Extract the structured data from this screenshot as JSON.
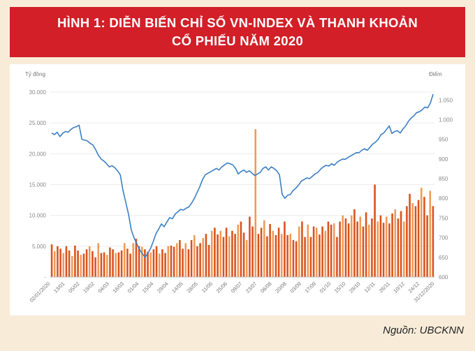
{
  "header": {
    "title_line1": "HÌNH 1: DIỄN BIẾN CHỈ SỐ VN-INDEX VÀ THANH KHOẢN",
    "title_line2": "CỔ PHIẾU NĂM 2020"
  },
  "source": "Nguồn: UBCKNN",
  "colors": {
    "header_bg": "#d21f28",
    "page_bg": "#f8ecd9",
    "line": "#3b7fc4",
    "bar_dark": "#d9531e",
    "bar_light": "#f29a55"
  },
  "chart_data": {
    "type": "bar+line",
    "left_axis_unit": "Tỷ đồng",
    "right_axis_unit": "Điểm",
    "left_ticks": [
      "30.000",
      "25.000",
      "20.000",
      "15.000",
      "10.000",
      "5.000",
      "-"
    ],
    "right_ticks": [
      "1.050",
      "1.000",
      "950",
      "900",
      "850",
      "800",
      "750",
      "700",
      "650",
      "600"
    ],
    "ylim_left": [
      0,
      30000
    ],
    "ylim_right": [
      600,
      1070
    ],
    "x_tick_labels": [
      "02/01/2020",
      "13/01",
      "05/02",
      "19/02",
      "04/03",
      "18/03",
      "01/04",
      "15/04",
      "29/04",
      "14/05",
      "28/05",
      "11/06",
      "25/06",
      "09/07",
      "23/07",
      "06/08",
      "20/08",
      "03/09",
      "17/09",
      "01/10",
      "15/10",
      "29/10",
      "12/11",
      "26/11",
      "10/12",
      "24/12",
      "31/12/2020"
    ],
    "series": [
      {
        "kind": "line",
        "axis": "right",
        "values": [
          966,
          962,
          968,
          957,
          965,
          970,
          968,
          975,
          980,
          982,
          986,
          950,
          948,
          946,
          940,
          936,
          924,
          910,
          900,
          895,
          888,
          880,
          883,
          878,
          870,
          860,
          820,
          790,
          760,
          720,
          700,
          685,
          670,
          660,
          650,
          660,
          672,
          690,
          710,
          722,
          735,
          728,
          740,
          751,
          748,
          760,
          766,
          772,
          770,
          775,
          778,
          788,
          800,
          815,
          830,
          848,
          860,
          864,
          868,
          872,
          876,
          872,
          880,
          885,
          890,
          888,
          885,
          876,
          862,
          868,
          872,
          866,
          870,
          864,
          858,
          862,
          866,
          876,
          880,
          872,
          880,
          876,
          870,
          860,
          810,
          800,
          808,
          810,
          820,
          826,
          834,
          844,
          848,
          852,
          850,
          856,
          862,
          866,
          874,
          880,
          884,
          882,
          888,
          884,
          892,
          896,
          900,
          899,
          904,
          908,
          912,
          916,
          916,
          922,
          926,
          922,
          930,
          938,
          943,
          950,
          962,
          966,
          975,
          984,
          965,
          970,
          972,
          966,
          976,
          984,
          996,
          1004,
          1010,
          1018,
          1020,
          1025,
          1032,
          1030,
          1042,
          1065
        ]
      },
      {
        "kind": "bar",
        "axis": "left",
        "values": [
          5300,
          4200,
          5000,
          4600,
          3900,
          5000,
          4300,
          3400,
          5100,
          4300,
          3600,
          3800,
          4500,
          5000,
          4200,
          3200,
          5500,
          3900,
          4000,
          3600,
          4800,
          4500,
          3900,
          4000,
          4300,
          5500,
          4600,
          3800,
          5500,
          6200,
          5000,
          4900,
          4500,
          4100,
          4000,
          4500,
          5000,
          3800,
          4500,
          3900,
          5000,
          5100,
          4900,
          5500,
          6000,
          4600,
          5500,
          4500,
          6000,
          6800,
          5000,
          5500,
          6300,
          7000,
          5200,
          7500,
          8000,
          6900,
          7500,
          6500,
          8000,
          6600,
          7500,
          7000,
          8500,
          9000,
          7200,
          6000,
          9800,
          8200,
          24000,
          7000,
          8000,
          9200,
          6600,
          8600,
          7500,
          6800,
          8000,
          7000,
          9000,
          6800,
          7000,
          6000,
          5800,
          8200,
          9000,
          6500,
          8500,
          6500,
          8200,
          8000,
          6900,
          8200,
          7500,
          9000,
          8500,
          8700,
          6500,
          9000,
          10000,
          9500,
          8700,
          10000,
          11000,
          9000,
          9800,
          8200,
          10500,
          8500,
          9500,
          15000,
          9000,
          10000,
          8800,
          9800,
          8700,
          10300,
          11000,
          9500,
          10700,
          9000,
          11500,
          13500,
          12000,
          11500,
          12500,
          14500,
          13000,
          10000,
          14000,
          11500
        ]
      }
    ]
  }
}
